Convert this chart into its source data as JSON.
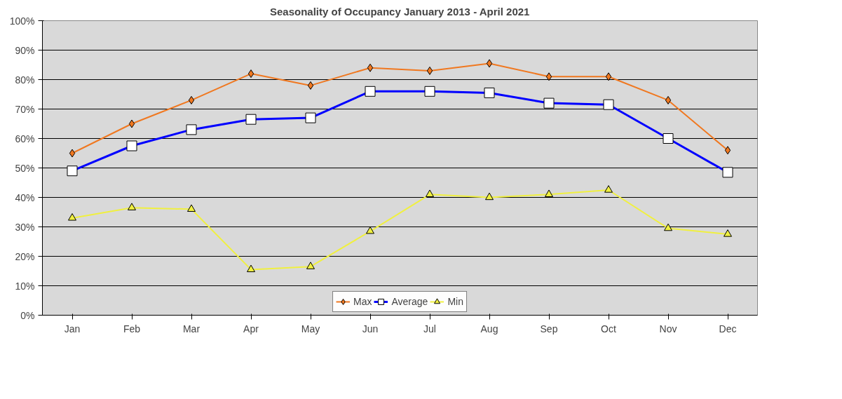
{
  "chart_data": {
    "type": "line",
    "title": "Seasonality of Occupancy January 2013 - April 2021",
    "categories": [
      "Jan",
      "Feb",
      "Mar",
      "Apr",
      "May",
      "Jun",
      "Jul",
      "Aug",
      "Sep",
      "Oct",
      "Nov",
      "Dec"
    ],
    "series": [
      {
        "name": "Max",
        "color": "#f07820",
        "marker": "diamond",
        "values": [
          55,
          65,
          73,
          82,
          78,
          84,
          83,
          85.5,
          81,
          81,
          73,
          56
        ]
      },
      {
        "name": "Average",
        "color": "#0000ff",
        "marker": "square",
        "values": [
          49,
          57.5,
          63,
          66.5,
          67,
          76,
          76,
          75.5,
          72,
          71.5,
          60,
          48.5
        ]
      },
      {
        "name": "Min",
        "color": "#f0f040",
        "marker": "triangle",
        "values": [
          33,
          36.5,
          36,
          15.5,
          16.5,
          28.5,
          41,
          40,
          41,
          42.5,
          29.5,
          27.5
        ]
      }
    ],
    "ylim": [
      0,
      100
    ],
    "yticks": [
      {
        "value": 0,
        "label": "0%"
      },
      {
        "value": 10,
        "label": "10%"
      },
      {
        "value": 20,
        "label": "20%"
      },
      {
        "value": 30,
        "label": "30%"
      },
      {
        "value": 40,
        "label": "40%"
      },
      {
        "value": 50,
        "label": "50%"
      },
      {
        "value": 60,
        "label": "60%"
      },
      {
        "value": 70,
        "label": "70%"
      },
      {
        "value": 80,
        "label": "80%"
      },
      {
        "value": 90,
        "label": "90%"
      },
      {
        "value": 100,
        "label": "100%"
      }
    ],
    "grid": "y",
    "legend": "bottom",
    "line_style": "solid"
  }
}
